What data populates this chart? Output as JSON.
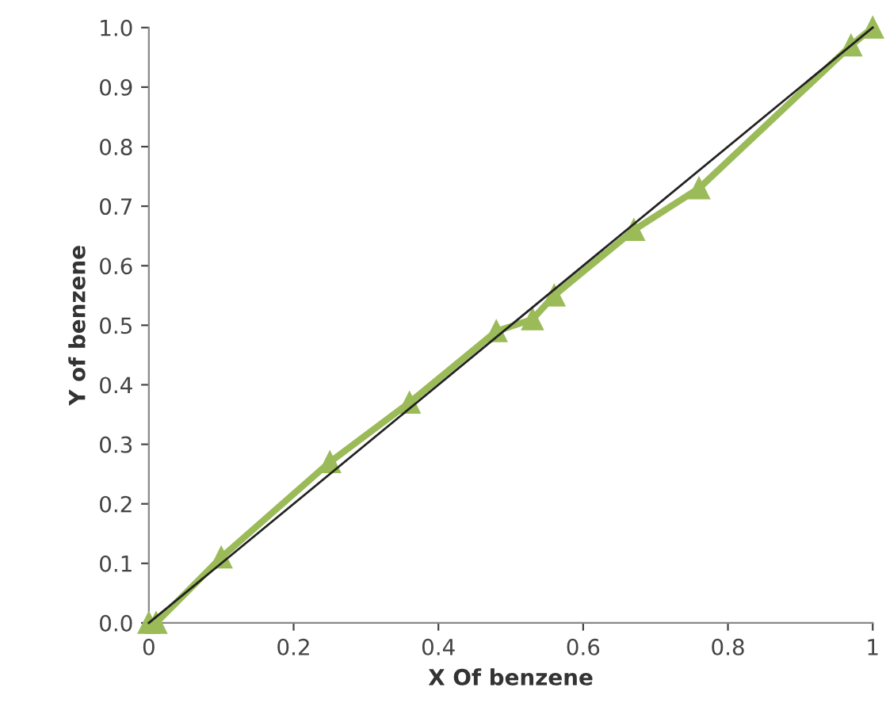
{
  "chart_data": {
    "type": "line",
    "xlabel": "X Of benzene",
    "ylabel": "Y of benzene",
    "xlim": [
      0,
      1
    ],
    "ylim": [
      0,
      1
    ],
    "xticks": [
      {
        "value": 0,
        "label": "0"
      },
      0.2,
      0.4,
      0.6,
      0.8,
      {
        "value": 1,
        "label": "1"
      }
    ],
    "yticks": [
      {
        "value": 0,
        "label": "0.0"
      },
      0.1,
      0.2,
      0.3,
      0.4,
      0.5,
      0.6,
      0.7,
      0.8,
      0.9,
      {
        "value": 1,
        "label": "1.0"
      }
    ],
    "grid": false,
    "legend": false,
    "series": [
      {
        "color": "#9bbb59",
        "marker": "triangle",
        "line_style": "solid",
        "x": [
          0,
          0.01,
          0.1,
          0.25,
          0.36,
          0.48,
          0.53,
          0.56,
          0.67,
          0.76,
          0.97,
          1
        ],
        "values": [
          0,
          0,
          0.11,
          0.27,
          0.37,
          0.49,
          0.51,
          0.55,
          0.66,
          0.73,
          0.97,
          1
        ]
      },
      {
        "color": "#222222",
        "marker": "none",
        "line_style": "solid",
        "x": [
          0,
          1
        ],
        "values": [
          0,
          1
        ]
      }
    ]
  }
}
